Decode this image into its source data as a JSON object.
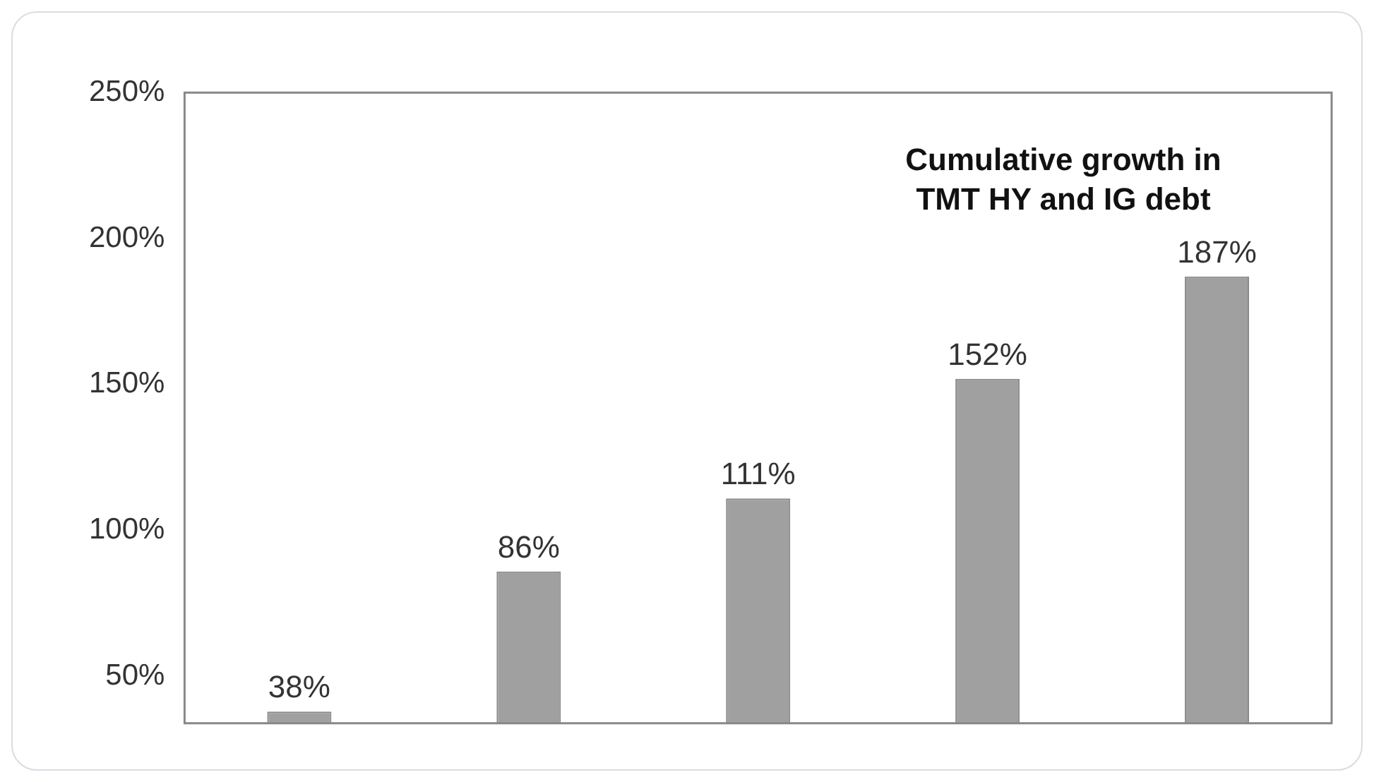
{
  "chart_data": {
    "type": "bar",
    "title": "Cumulative growth in\nTMT HY and IG debt",
    "categories": [
      null,
      null,
      null,
      null,
      null
    ],
    "values": [
      38,
      86,
      111,
      152,
      187
    ],
    "value_labels": [
      "38%",
      "86%",
      "111%",
      "152%",
      "187%"
    ],
    "color": "#a0a0a0",
    "ylim": [
      34,
      250
    ],
    "yticks": [
      {
        "value": 50,
        "label": "50%"
      },
      {
        "value": 100,
        "label": "100%"
      },
      {
        "value": 150,
        "label": "150%"
      },
      {
        "value": 200,
        "label": "200%"
      },
      {
        "value": 250,
        "label": "250%"
      }
    ],
    "grid": false,
    "legend": false,
    "tick_labels": "y"
  }
}
